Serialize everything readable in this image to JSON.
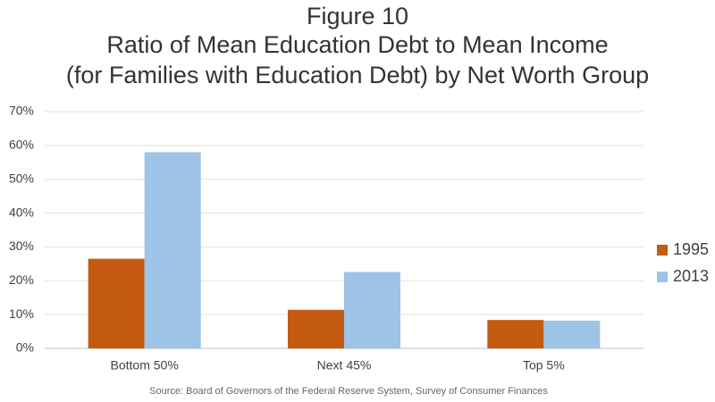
{
  "chart_data": {
    "type": "bar",
    "title": [
      "Figure 10",
      "Ratio of Mean Education Debt to Mean Income",
      "(for Families with Education Debt) by Net Worth Group"
    ],
    "source": "Source: Board of Governors of the Federal Reserve System, Survey of Consumer Finances",
    "categories": [
      "Bottom 50%",
      "Next 45%",
      "Top 5%"
    ],
    "series": [
      {
        "name": "1995",
        "color": "#c55a11",
        "values": [
          26.5,
          11.4,
          8.4
        ]
      },
      {
        "name": "2013",
        "color": "#9dc3e6",
        "values": [
          58,
          22.6,
          8.2
        ]
      }
    ],
    "ylim": [
      0,
      70
    ],
    "yticks": [
      {
        "value": 0,
        "label": "0%"
      },
      {
        "value": 10,
        "label": "10%"
      },
      {
        "value": 20,
        "label": "20%"
      },
      {
        "value": 30,
        "label": "30%"
      },
      {
        "value": 40,
        "label": "40%"
      },
      {
        "value": 50,
        "label": "50%"
      },
      {
        "value": 60,
        "label": "60%"
      },
      {
        "value": 70,
        "label": "70%"
      }
    ],
    "grid": true,
    "legend": "right"
  }
}
